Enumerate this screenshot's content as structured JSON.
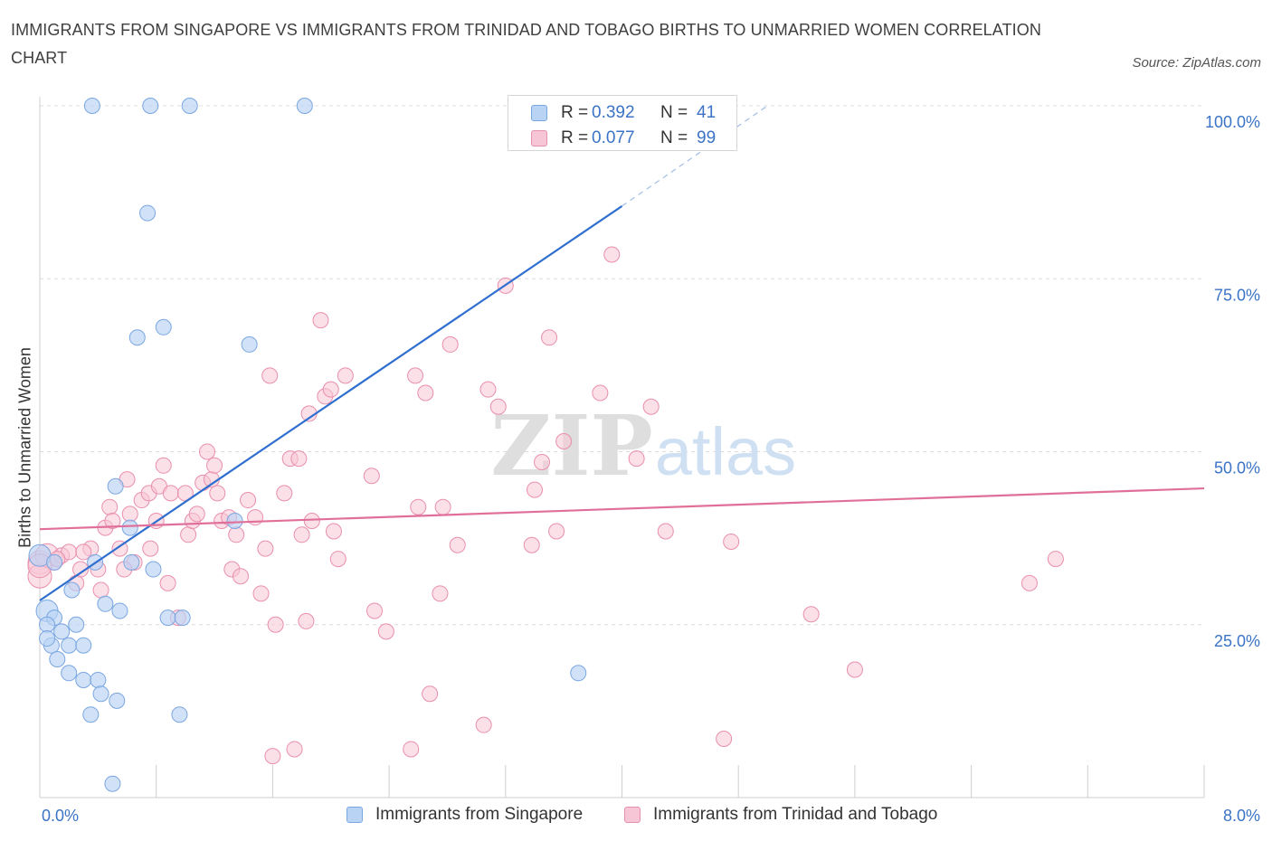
{
  "title": "IMMIGRANTS FROM SINGAPORE VS IMMIGRANTS FROM TRINIDAD AND TOBAGO BIRTHS TO UNMARRIED WOMEN CORRELATION CHART",
  "source": "Source: ZipAtlas.com",
  "watermark": {
    "zip": "ZIP",
    "atlas": "atlas"
  },
  "colors": {
    "singapore_fill": "#b9d3f5",
    "singapore_stroke": "#7aa6e0",
    "singapore_line": "#2f6fcf",
    "trinidad_fill": "#f7c6d6",
    "trinidad_stroke": "#e98fae",
    "trinidad_line": "#e0709a",
    "tick_label": "#3b73c6",
    "grid": "#dcdcdc"
  },
  "legend_top": {
    "rows": [
      {
        "r_label": "R =",
        "r_value": "0.392",
        "n_label": "N =",
        "n_value": "41"
      },
      {
        "r_label": "R =",
        "r_value": "0.077",
        "n_label": "N =",
        "n_value": "99"
      }
    ]
  },
  "legend_bottom": {
    "singapore": "Immigrants from Singapore",
    "trinidad": "Immigrants from Trinidad and Tobago"
  },
  "chart_data": {
    "type": "scatter",
    "title": "IMMIGRANTS FROM SINGAPORE VS IMMIGRANTS FROM TRINIDAD AND TOBAGO BIRTHS TO UNMARRIED WOMEN CORRELATION CHART",
    "xlabel": "",
    "ylabel": "Births to Unmarried Women",
    "xlim": [
      0,
      8
    ],
    "ylim": [
      0,
      100
    ],
    "x_tick_labels": [
      {
        "value": 0,
        "label": "0.0%"
      },
      {
        "value": 8,
        "label": "8.0%"
      }
    ],
    "y_tick_labels": [
      {
        "value": 25,
        "label": "25.0%"
      },
      {
        "value": 50,
        "label": "50.0%"
      },
      {
        "value": 75,
        "label": "75.0%"
      },
      {
        "value": 100,
        "label": "100.0%"
      }
    ],
    "grid": true,
    "legend_position": "top-center",
    "series": [
      {
        "name": "Immigrants from Singapore",
        "R": 0.392,
        "N": 41,
        "trendline": {
          "x": [
            0,
            4
          ],
          "y": [
            28.5,
            85.5
          ],
          "dashed_extension_to": [
            5,
            100
          ]
        },
        "points": [
          [
            0.0,
            35
          ],
          [
            0.05,
            27
          ],
          [
            0.1,
            26
          ],
          [
            0.05,
            25
          ],
          [
            0.08,
            22
          ],
          [
            0.15,
            24
          ],
          [
            0.25,
            25
          ],
          [
            0.2,
            22
          ],
          [
            0.12,
            20
          ],
          [
            0.3,
            22
          ],
          [
            0.2,
            18
          ],
          [
            0.3,
            17
          ],
          [
            0.4,
            17
          ],
          [
            0.42,
            15
          ],
          [
            0.35,
            12
          ],
          [
            0.53,
            14
          ],
          [
            0.45,
            28
          ],
          [
            0.55,
            27
          ],
          [
            0.22,
            30
          ],
          [
            0.38,
            34
          ],
          [
            0.63,
            34
          ],
          [
            0.78,
            33
          ],
          [
            0.62,
            39
          ],
          [
            0.52,
            45
          ],
          [
            0.88,
            26
          ],
          [
            0.98,
            26
          ],
          [
            0.96,
            12
          ],
          [
            1.34,
            40
          ],
          [
            0.5,
            2
          ],
          [
            0.67,
            66.5
          ],
          [
            0.85,
            68
          ],
          [
            1.44,
            65.5
          ],
          [
            0.74,
            84.5
          ],
          [
            0.36,
            100
          ],
          [
            0.76,
            100
          ],
          [
            1.03,
            100
          ],
          [
            1.82,
            100
          ],
          [
            3.65,
            100
          ],
          [
            3.7,
            18
          ],
          [
            0.05,
            23
          ],
          [
            0.1,
            34
          ]
        ]
      },
      {
        "name": "Immigrants from Trinidad and Tobago",
        "R": 0.077,
        "N": 99,
        "trendline": {
          "x": [
            0,
            8
          ],
          "y": [
            38.8,
            44.7
          ]
        },
        "points": [
          [
            0.0,
            34
          ],
          [
            0.0,
            32
          ],
          [
            0.05,
            35
          ],
          [
            0.1,
            34
          ],
          [
            0.15,
            35
          ],
          [
            0.2,
            35.5
          ],
          [
            0.28,
            33
          ],
          [
            0.25,
            31
          ],
          [
            0.35,
            36
          ],
          [
            0.4,
            33
          ],
          [
            0.42,
            30
          ],
          [
            0.45,
            39
          ],
          [
            0.48,
            42
          ],
          [
            0.5,
            40
          ],
          [
            0.55,
            36
          ],
          [
            0.6,
            46
          ],
          [
            0.62,
            41
          ],
          [
            0.65,
            34
          ],
          [
            0.7,
            43
          ],
          [
            0.75,
            44
          ],
          [
            0.76,
            36
          ],
          [
            0.8,
            40
          ],
          [
            0.82,
            45
          ],
          [
            0.85,
            48
          ],
          [
            0.88,
            31
          ],
          [
            0.9,
            44
          ],
          [
            0.95,
            26
          ],
          [
            1.0,
            44
          ],
          [
            1.02,
            38
          ],
          [
            1.05,
            40
          ],
          [
            1.08,
            41
          ],
          [
            1.12,
            45.5
          ],
          [
            1.15,
            50
          ],
          [
            1.18,
            46
          ],
          [
            1.2,
            48
          ],
          [
            1.22,
            44
          ],
          [
            1.25,
            40
          ],
          [
            1.3,
            40.5
          ],
          [
            1.32,
            33
          ],
          [
            1.35,
            38
          ],
          [
            1.38,
            32
          ],
          [
            1.43,
            43
          ],
          [
            1.48,
            40.5
          ],
          [
            1.52,
            29.5
          ],
          [
            1.55,
            36
          ],
          [
            1.58,
            61
          ],
          [
            1.6,
            6
          ],
          [
            1.62,
            25
          ],
          [
            1.68,
            44
          ],
          [
            1.72,
            49
          ],
          [
            1.75,
            7
          ],
          [
            1.78,
            49
          ],
          [
            1.8,
            38
          ],
          [
            1.83,
            25.5
          ],
          [
            1.85,
            55.5
          ],
          [
            1.87,
            40
          ],
          [
            1.93,
            69
          ],
          [
            1.96,
            58
          ],
          [
            2.0,
            59
          ],
          [
            2.02,
            38.5
          ],
          [
            2.05,
            34.5
          ],
          [
            2.1,
            61
          ],
          [
            2.28,
            46.5
          ],
          [
            2.3,
            27
          ],
          [
            2.38,
            24
          ],
          [
            2.55,
            7
          ],
          [
            2.58,
            61
          ],
          [
            2.6,
            42
          ],
          [
            2.65,
            58.5
          ],
          [
            2.68,
            15
          ],
          [
            2.75,
            29.5
          ],
          [
            2.77,
            42
          ],
          [
            2.82,
            65.5
          ],
          [
            2.87,
            36.5
          ],
          [
            3.05,
            10.5
          ],
          [
            3.08,
            59
          ],
          [
            3.15,
            56.5
          ],
          [
            3.2,
            74
          ],
          [
            3.38,
            36.5
          ],
          [
            3.4,
            44.5
          ],
          [
            3.45,
            48.5
          ],
          [
            3.5,
            66.5
          ],
          [
            3.55,
            38.5
          ],
          [
            3.6,
            51.5
          ],
          [
            3.85,
            58.5
          ],
          [
            3.93,
            78.5
          ],
          [
            4.1,
            49
          ],
          [
            4.2,
            56.5
          ],
          [
            4.3,
            38.5
          ],
          [
            4.7,
            8.5
          ],
          [
            4.75,
            37
          ],
          [
            5.3,
            26.5
          ],
          [
            5.6,
            18.5
          ],
          [
            6.8,
            31
          ],
          [
            6.98,
            34.5
          ],
          [
            0.0,
            33.5
          ],
          [
            0.12,
            34.5
          ],
          [
            0.3,
            35.5
          ],
          [
            0.58,
            33
          ]
        ]
      }
    ]
  }
}
